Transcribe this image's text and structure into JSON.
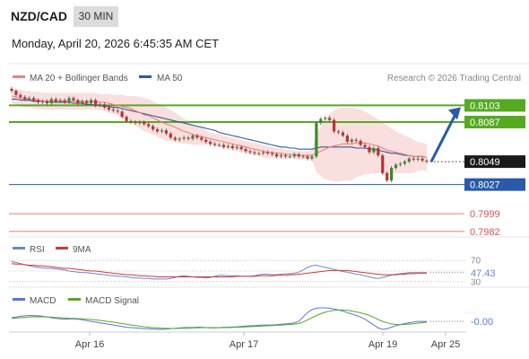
{
  "header": {
    "pair": "NZD/CAD",
    "timeframe": "30 MIN",
    "datetime": "Monday, April 20, 2026 6:45:35 AM CET"
  },
  "legend": {
    "ma20": "MA 20 + Bollinger Bands",
    "ma50": "MA 50",
    "copyright": "Research © 2026 Trading Central",
    "rsi": "RSI",
    "rsi_ma": "9MA",
    "macd": "MACD",
    "macd_signal": "MACD Signal"
  },
  "colors": {
    "ma20": "#f08080",
    "bollinger_fill": "#fadcdc",
    "ma50": "#2e5b9a",
    "resistance": "#55aa22",
    "support": "#2a5aa8",
    "target_lower": "#e05050",
    "current_price_bg": "#1a1a1a",
    "rsi": "#6688cc",
    "rsi_ma": "#dd3333",
    "macd": "#5577dd",
    "macd_signal": "#55aa22",
    "arrow": "#2a5aa8"
  },
  "chart_data": [
    {
      "type": "candlestick",
      "title": "NZD/CAD",
      "ylim": [
        0.7975,
        0.8118
      ],
      "x_ticks": [
        "Apr 16",
        "Apr 17",
        "Apr 19",
        "Apr 25"
      ],
      "current_price": 0.8049,
      "levels": [
        {
          "label": "0.8103",
          "value": 0.8103,
          "kind": "resistance"
        },
        {
          "label": "0.8087",
          "value": 0.8087,
          "kind": "resistance"
        },
        {
          "label": "0.8049",
          "value": 0.8049,
          "kind": "current"
        },
        {
          "label": "0.8027",
          "value": 0.8027,
          "kind": "support"
        },
        {
          "label": "0.7999",
          "value": 0.7999,
          "kind": "target"
        },
        {
          "label": "0.7982",
          "value": 0.7982,
          "kind": "target"
        }
      ],
      "close": [
        0.8117,
        0.8113,
        0.8111,
        0.8109,
        0.811,
        0.8108,
        0.8106,
        0.8107,
        0.8105,
        0.8109,
        0.8107,
        0.8108,
        0.8106,
        0.811,
        0.8108,
        0.8105,
        0.8107,
        0.8105,
        0.8108,
        0.8103,
        0.8104,
        0.8101,
        0.8099,
        0.8098,
        0.8097,
        0.8092,
        0.8088,
        0.8087,
        0.8086,
        0.8087,
        0.8085,
        0.8083,
        0.808,
        0.8078,
        0.8079,
        0.8076,
        0.8072,
        0.807,
        0.8071,
        0.8072,
        0.8071,
        0.8074,
        0.8072,
        0.807,
        0.8068,
        0.8066,
        0.8065,
        0.8065,
        0.8063,
        0.8064,
        0.8062,
        0.8063,
        0.8061,
        0.8059,
        0.8058,
        0.8057,
        0.8057,
        0.8058,
        0.8057,
        0.8056,
        0.8054,
        0.8055,
        0.8054,
        0.8054,
        0.8056,
        0.8054,
        0.8054,
        0.8052,
        0.8054,
        0.8086,
        0.809,
        0.8091,
        0.8089,
        0.8078,
        0.8077,
        0.8074,
        0.8068,
        0.807,
        0.8069,
        0.8065,
        0.8063,
        0.8058,
        0.8062,
        0.8055,
        0.8038,
        0.8031,
        0.8043,
        0.8046,
        0.8047,
        0.8049,
        0.8052,
        0.8051,
        0.8052,
        0.805,
        0.8049
      ],
      "ma20": [
        0.8112,
        0.8111,
        0.811,
        0.8109,
        0.8109,
        0.8108,
        0.8108,
        0.8107,
        0.8107,
        0.8107,
        0.8107,
        0.8107,
        0.8107,
        0.8107,
        0.8107,
        0.8107,
        0.8107,
        0.8107,
        0.8107,
        0.8107,
        0.8106,
        0.8106,
        0.8105,
        0.8104,
        0.8103,
        0.8102,
        0.8101,
        0.81,
        0.8098,
        0.8096,
        0.8094,
        0.8093,
        0.8091,
        0.8089,
        0.8087,
        0.8085,
        0.8084,
        0.8082,
        0.808,
        0.8078,
        0.8077,
        0.8075,
        0.8074,
        0.8073,
        0.8072,
        0.8071,
        0.807,
        0.8069,
        0.8068,
        0.8067,
        0.8066,
        0.8065,
        0.8064,
        0.8063,
        0.8062,
        0.8061,
        0.806,
        0.8059,
        0.8058,
        0.8058,
        0.8057,
        0.8057,
        0.8056,
        0.8056,
        0.8056,
        0.8055,
        0.8055,
        0.8055,
        0.8055,
        0.8057,
        0.8059,
        0.8061,
        0.8063,
        0.8064,
        0.8065,
        0.8066,
        0.8066,
        0.8066,
        0.8067,
        0.8067,
        0.8067,
        0.8066,
        0.8065,
        0.8064,
        0.8062,
        0.806,
        0.8059,
        0.8058,
        0.8057,
        0.8056,
        0.8055,
        0.8054,
        0.8054,
        0.8054,
        0.8053
      ],
      "bb_upper": [
        0.8119,
        0.8118,
        0.8118,
        0.8117,
        0.8117,
        0.8116,
        0.8116,
        0.8115,
        0.8115,
        0.8115,
        0.8115,
        0.8115,
        0.8115,
        0.8115,
        0.8115,
        0.8115,
        0.8115,
        0.8115,
        0.8115,
        0.8115,
        0.8114,
        0.8114,
        0.8114,
        0.8113,
        0.8113,
        0.8113,
        0.8112,
        0.8112,
        0.8112,
        0.8111,
        0.811,
        0.8109,
        0.8107,
        0.8105,
        0.8103,
        0.8101,
        0.8099,
        0.8096,
        0.8093,
        0.809,
        0.8088,
        0.8085,
        0.8083,
        0.8081,
        0.8079,
        0.8077,
        0.8076,
        0.8075,
        0.8074,
        0.8073,
        0.8072,
        0.8071,
        0.807,
        0.8069,
        0.8068,
        0.8067,
        0.8066,
        0.8065,
        0.8064,
        0.8063,
        0.8062,
        0.8062,
        0.8061,
        0.806,
        0.806,
        0.8059,
        0.8059,
        0.8059,
        0.806,
        0.8075,
        0.8083,
        0.809,
        0.8095,
        0.8098,
        0.81,
        0.8101,
        0.8101,
        0.8101,
        0.81,
        0.8099,
        0.8097,
        0.8095,
        0.8092,
        0.809,
        0.8087,
        0.8084,
        0.8081,
        0.8078,
        0.8076,
        0.8074,
        0.8072,
        0.807,
        0.8068,
        0.8067,
        0.8066
      ],
      "bb_lower": [
        0.8105,
        0.8104,
        0.8102,
        0.8101,
        0.8101,
        0.81,
        0.81,
        0.8099,
        0.8099,
        0.8099,
        0.8099,
        0.8099,
        0.8099,
        0.8099,
        0.8099,
        0.8099,
        0.8099,
        0.8099,
        0.8099,
        0.8099,
        0.8098,
        0.8098,
        0.8096,
        0.8095,
        0.8093,
        0.8091,
        0.809,
        0.8088,
        0.8084,
        0.8081,
        0.8078,
        0.8077,
        0.8075,
        0.8073,
        0.8071,
        0.8069,
        0.8069,
        0.8068,
        0.8067,
        0.8066,
        0.8066,
        0.8065,
        0.8065,
        0.8065,
        0.8065,
        0.8065,
        0.8064,
        0.8063,
        0.8062,
        0.8061,
        0.806,
        0.8059,
        0.8058,
        0.8057,
        0.8056,
        0.8055,
        0.8054,
        0.8053,
        0.8052,
        0.8053,
        0.8052,
        0.8052,
        0.8051,
        0.8052,
        0.8052,
        0.8051,
        0.8051,
        0.8051,
        0.805,
        0.8039,
        0.8035,
        0.8032,
        0.8031,
        0.803,
        0.803,
        0.8031,
        0.8031,
        0.8031,
        0.8034,
        0.8035,
        0.8037,
        0.8037,
        0.8038,
        0.8038,
        0.8037,
        0.8036,
        0.8037,
        0.8038,
        0.8038,
        0.8038,
        0.8038,
        0.8038,
        0.804,
        0.8041,
        0.804
      ],
      "ma50": [
        0.8109,
        0.8109,
        0.8108,
        0.8108,
        0.8108,
        0.8107,
        0.8107,
        0.8107,
        0.8107,
        0.8106,
        0.8106,
        0.8106,
        0.8106,
        0.8106,
        0.8105,
        0.8105,
        0.8105,
        0.8104,
        0.8104,
        0.8103,
        0.8103,
        0.8102,
        0.8102,
        0.8101,
        0.8101,
        0.81,
        0.8099,
        0.8098,
        0.8097,
        0.8096,
        0.8095,
        0.8094,
        0.8093,
        0.8092,
        0.8091,
        0.809,
        0.8089,
        0.8088,
        0.8087,
        0.8086,
        0.8085,
        0.8084,
        0.8083,
        0.8082,
        0.8081,
        0.808,
        0.8079,
        0.8077,
        0.8076,
        0.8075,
        0.8074,
        0.8073,
        0.8072,
        0.8071,
        0.807,
        0.8069,
        0.8068,
        0.8067,
        0.8066,
        0.8065,
        0.8064,
        0.8063,
        0.8063,
        0.8062,
        0.8062,
        0.8061,
        0.8061,
        0.8061,
        0.8061,
        0.8062,
        0.8063,
        0.8063,
        0.8063,
        0.8063,
        0.8063,
        0.8063,
        0.8063,
        0.8063,
        0.8062,
        0.8062,
        0.8062,
        0.8061,
        0.8061,
        0.806,
        0.8059,
        0.8058,
        0.8057,
        0.8057,
        0.8056,
        0.8055,
        0.8055,
        0.8054,
        0.8054,
        0.8054,
        0.8053
      ]
    },
    {
      "type": "line",
      "title": "RSI",
      "ylim": [
        28,
        72
      ],
      "y_ticks": [
        "70",
        "50",
        "30"
      ],
      "current_value": "47.43",
      "series": [
        {
          "name": "RSI",
          "values": [
            68,
            66,
            64,
            62,
            60,
            58,
            57,
            56,
            55,
            55,
            54,
            53,
            52,
            50,
            49,
            48,
            47,
            47,
            46,
            45,
            44,
            43,
            42,
            41,
            40,
            40,
            39,
            38,
            37,
            37,
            36,
            36,
            35,
            35,
            35,
            35,
            36,
            38,
            40,
            41,
            40,
            39,
            38,
            38,
            37,
            38,
            40,
            42,
            42,
            41,
            41,
            41,
            40,
            40,
            40,
            41,
            43,
            44,
            44,
            43,
            43,
            44,
            45,
            45,
            46,
            48,
            52,
            57,
            60,
            61,
            59,
            57,
            55,
            53,
            51,
            49,
            48,
            46,
            44,
            43,
            41,
            39,
            37,
            36,
            38,
            40,
            42,
            44,
            45,
            46,
            47,
            47,
            47,
            47,
            47
          ]
        },
        {
          "name": "9MA",
          "values": [
            64,
            63,
            63,
            62,
            61,
            61,
            60,
            60,
            59,
            58,
            57,
            56,
            55,
            55,
            54,
            53,
            52,
            51,
            50,
            50,
            49,
            48,
            47,
            46,
            45,
            44,
            43,
            43,
            42,
            41,
            41,
            40,
            40,
            39,
            39,
            39,
            39,
            39,
            39,
            39,
            39,
            39,
            39,
            39,
            39,
            39,
            39,
            39,
            39,
            39,
            39,
            40,
            40,
            40,
            40,
            40,
            41,
            41,
            41,
            41,
            42,
            42,
            42,
            43,
            43,
            44,
            45,
            46,
            47,
            48,
            49,
            50,
            51,
            51,
            51,
            51,
            51,
            50,
            49,
            48,
            47,
            46,
            45,
            44,
            43,
            43,
            43,
            43,
            44,
            44,
            45,
            45,
            46,
            46,
            46
          ]
        }
      ]
    },
    {
      "type": "line",
      "title": "MACD",
      "current_value": "-0.00",
      "series": [
        {
          "name": "MACD",
          "values": [
            0.5,
            0.6,
            0.7,
            0.75,
            0.8,
            0.78,
            0.75,
            0.7,
            0.6,
            0.5,
            0.4,
            0.35,
            0.3,
            0.32,
            0.35,
            0.3,
            0.2,
            0.1,
            0.0,
            -0.1,
            -0.2,
            -0.3,
            -0.4,
            -0.5,
            -0.6,
            -0.7,
            -0.8,
            -0.85,
            -0.9,
            -0.95,
            -1.0,
            -1.0,
            -1.05,
            -1.1,
            -1.1,
            -1.05,
            -1.0,
            -0.95,
            -0.9,
            -0.85,
            -0.85,
            -0.85,
            -0.8,
            -0.8,
            -0.85,
            -0.9,
            -0.9,
            -0.85,
            -0.8,
            -0.8,
            -0.75,
            -0.75,
            -0.7,
            -0.65,
            -0.6,
            -0.6,
            -0.55,
            -0.5,
            -0.5,
            -0.5,
            -0.45,
            -0.4,
            -0.35,
            -0.3,
            -0.2,
            0.0,
            0.6,
            1.2,
            1.6,
            1.8,
            1.85,
            1.85,
            1.8,
            1.7,
            1.55,
            1.4,
            1.2,
            1.0,
            0.8,
            0.6,
            0.3,
            -0.1,
            -0.5,
            -0.9,
            -1.1,
            -1.0,
            -0.8,
            -0.6,
            -0.45,
            -0.3,
            -0.2,
            -0.1,
            0.0,
            0.0,
            0.0
          ]
        },
        {
          "name": "MACD Signal",
          "values": [
            0.4,
            0.45,
            0.5,
            0.55,
            0.6,
            0.62,
            0.63,
            0.62,
            0.6,
            0.57,
            0.53,
            0.5,
            0.46,
            0.43,
            0.41,
            0.38,
            0.34,
            0.3,
            0.25,
            0.2,
            0.13,
            0.06,
            -0.02,
            -0.1,
            -0.2,
            -0.3,
            -0.4,
            -0.5,
            -0.58,
            -0.66,
            -0.74,
            -0.8,
            -0.86,
            -0.9,
            -0.94,
            -0.97,
            -0.98,
            -0.98,
            -0.97,
            -0.95,
            -0.93,
            -0.91,
            -0.89,
            -0.87,
            -0.86,
            -0.86,
            -0.87,
            -0.87,
            -0.86,
            -0.85,
            -0.83,
            -0.81,
            -0.79,
            -0.76,
            -0.73,
            -0.7,
            -0.67,
            -0.63,
            -0.6,
            -0.57,
            -0.54,
            -0.51,
            -0.47,
            -0.43,
            -0.38,
            -0.3,
            -0.1,
            0.2,
            0.5,
            0.8,
            1.05,
            1.25,
            1.4,
            1.5,
            1.55,
            1.55,
            1.5,
            1.42,
            1.3,
            1.17,
            1.0,
            0.8,
            0.55,
            0.25,
            0.0,
            -0.2,
            -0.35,
            -0.42,
            -0.45,
            -0.43,
            -0.38,
            -0.32,
            -0.25,
            -0.18,
            -0.12
          ]
        }
      ]
    }
  ]
}
